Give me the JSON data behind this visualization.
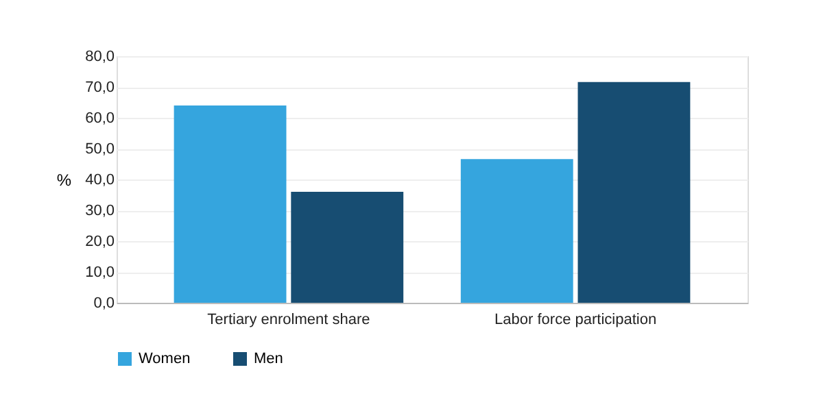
{
  "chart_data": {
    "type": "bar",
    "ylabel": "%",
    "categories": [
      "Tertiary enrolment share",
      "Labor force participation"
    ],
    "series": [
      {
        "name": "Women",
        "color": "#35a5de",
        "values": [
          64,
          46.6
        ]
      },
      {
        "name": "Men",
        "color": "#174d72",
        "values": [
          36,
          71.6
        ]
      }
    ],
    "ylim": [
      0,
      80
    ],
    "yticks": [
      {
        "value": 0,
        "label": "0,0"
      },
      {
        "value": 10,
        "label": "10,0"
      },
      {
        "value": 20,
        "label": "20,0"
      },
      {
        "value": 30,
        "label": "30,0"
      },
      {
        "value": 40,
        "label": "40,0"
      },
      {
        "value": 50,
        "label": "50,0"
      },
      {
        "value": 60,
        "label": "60,0"
      },
      {
        "value": 70,
        "label": "70,0"
      },
      {
        "value": 80,
        "label": "80,0"
      }
    ],
    "grid": "y",
    "legend": "bottom"
  }
}
